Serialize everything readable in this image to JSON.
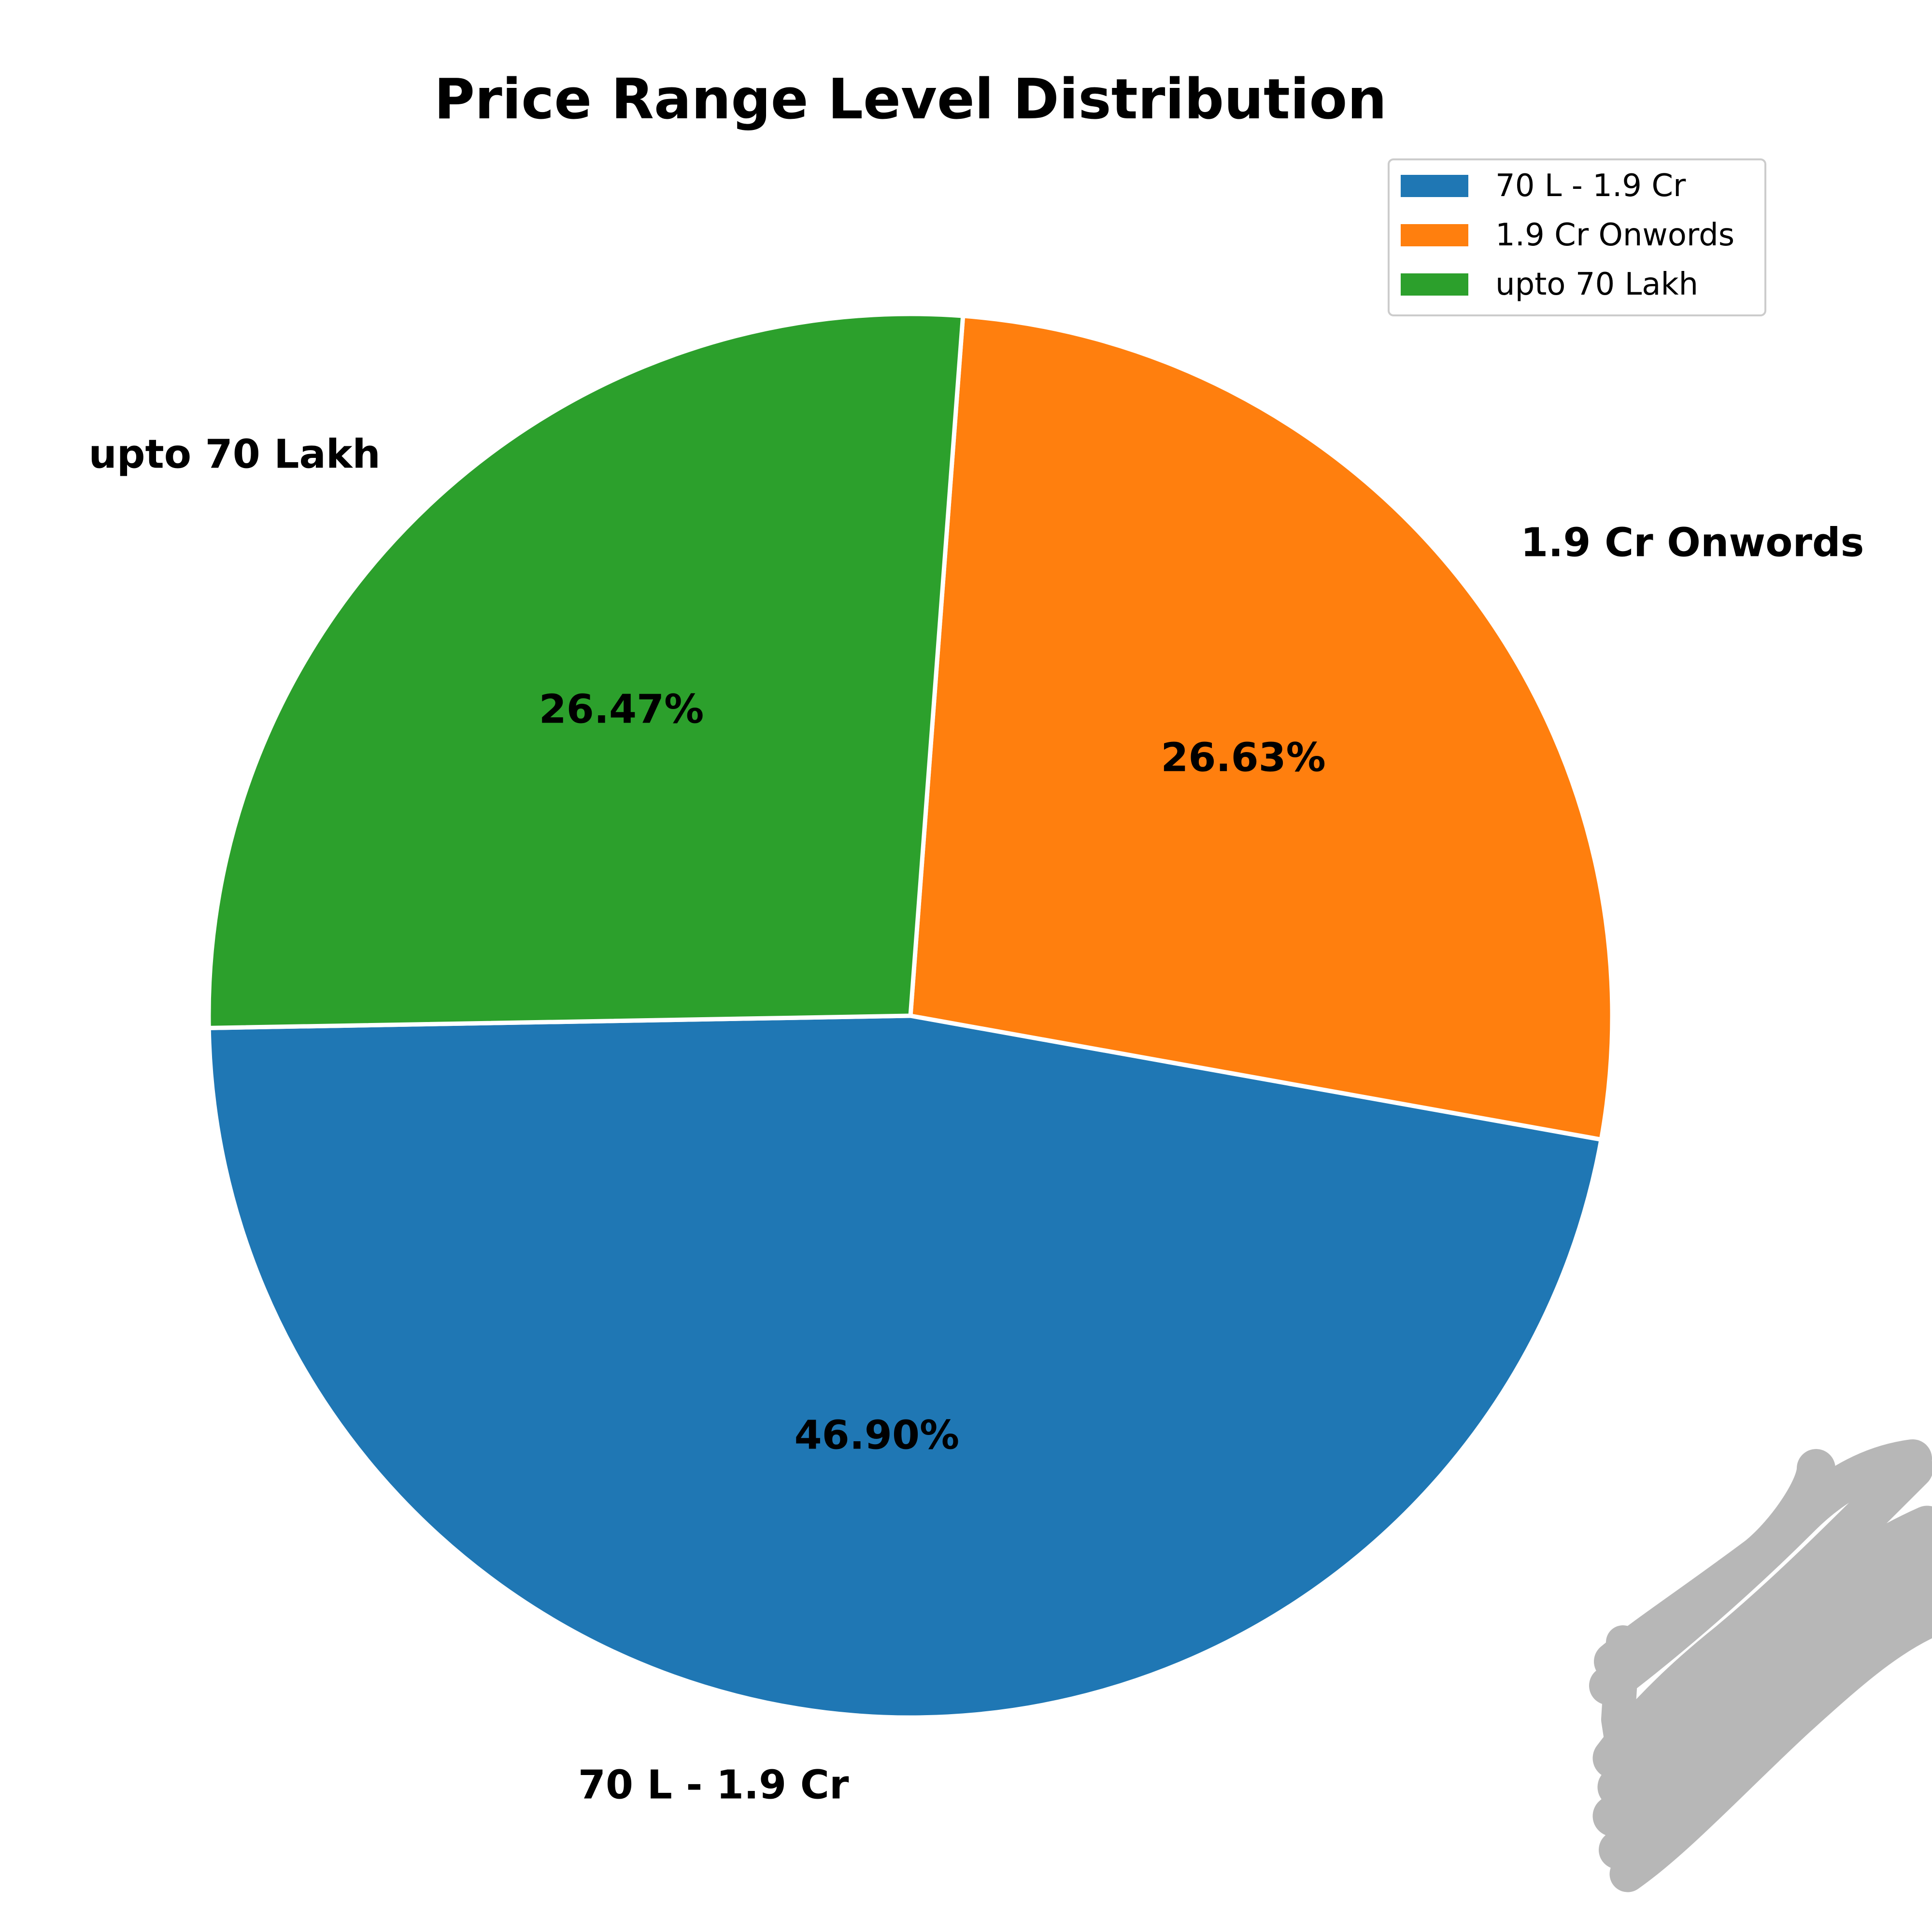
{
  "chart_data": {
    "type": "pie",
    "title": "Price Range Level Distribution",
    "categories": [
      "70 L - 1.9 Cr",
      "1.9 Cr Onwords",
      "upto 70 Lakh"
    ],
    "values": [
      46.9,
      26.63,
      26.47
    ],
    "percent_labels": [
      "46.90%",
      "26.63%",
      "26.47%"
    ],
    "colors": [
      "#1f77b4",
      "#ff7f0e",
      "#2ca02c"
    ],
    "legend": {
      "placement": "upper-right",
      "entries": [
        "70 L - 1.9 Cr",
        "1.9 Cr Onwords",
        "upto 70 Lakh"
      ]
    },
    "start_angle_deg": 181,
    "direction": "counterclockwise",
    "edge_color": "#ffffff"
  }
}
